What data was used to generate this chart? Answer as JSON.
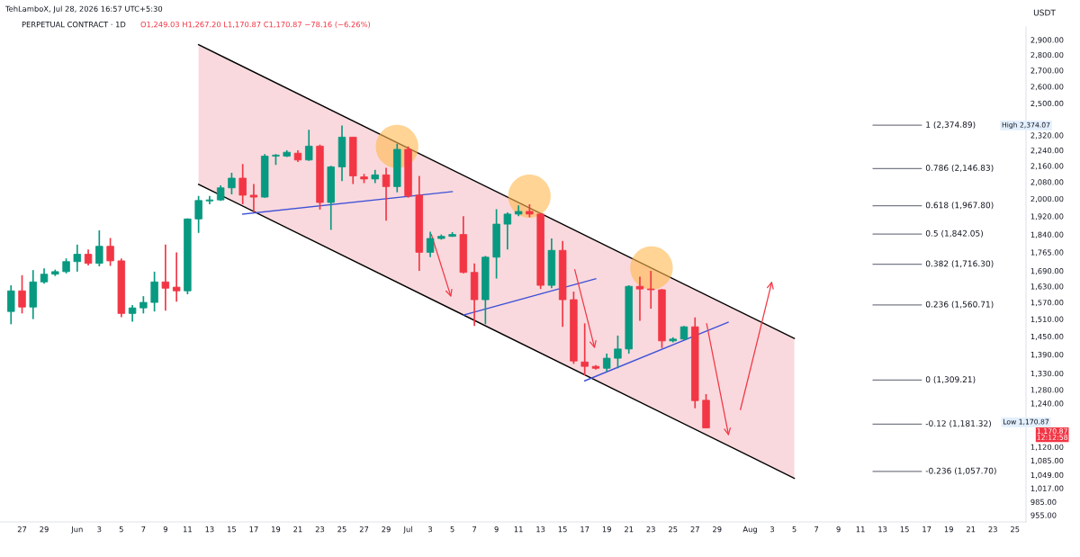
{
  "chart_data": {
    "type": "candlestick",
    "title": "PERPETUAL CONTRACT · 1D",
    "subtitle": "O1,249.03 H1,267.20 L1,170.87 C1,170.87 −78.16 (−6.26%)",
    "ylabel": "USDT",
    "annotations": [
      "TehLamboX, Jul 28, 2026 16:57 UTC+5:30",
      "High 2,374.07",
      "Low 1,170.87",
      "1,170.87\n12:12:58"
    ],
    "x": [
      "2026-05-26",
      "2026-05-27",
      "2026-05-28",
      "2026-05-29",
      "2026-05-30",
      "2026-05-31",
      "2026-06-01",
      "2026-06-02",
      "2026-06-03",
      "2026-06-04",
      "2026-06-05",
      "2026-06-06",
      "2026-06-07",
      "2026-06-08",
      "2026-06-09",
      "2026-06-10",
      "2026-06-11",
      "2026-06-12",
      "2026-06-13",
      "2026-06-14",
      "2026-06-15",
      "2026-06-16",
      "2026-06-17",
      "2026-06-18",
      "2026-06-19",
      "2026-06-20",
      "2026-06-21",
      "2026-06-22",
      "2026-06-23",
      "2026-06-24",
      "2026-06-25",
      "2026-06-26",
      "2026-06-27",
      "2026-06-28",
      "2026-06-29",
      "2026-06-30",
      "2026-07-01",
      "2026-07-02",
      "2026-07-03",
      "2026-07-04",
      "2026-07-05",
      "2026-07-06",
      "2026-07-07",
      "2026-07-08",
      "2026-07-09",
      "2026-07-10",
      "2026-07-11",
      "2026-07-12",
      "2026-07-13",
      "2026-07-14",
      "2026-07-15",
      "2026-07-16",
      "2026-07-17",
      "2026-07-18",
      "2026-07-19",
      "2026-07-20",
      "2026-07-21",
      "2026-07-22",
      "2026-07-23",
      "2026-07-24",
      "2026-07-25",
      "2026-07-26",
      "2026-07-27",
      "2026-07-28"
    ],
    "ohlc": [
      [
        1537,
        1634,
        1492,
        1613
      ],
      [
        1613,
        1673,
        1530,
        1553
      ],
      [
        1553,
        1693,
        1510,
        1647
      ],
      [
        1647,
        1700,
        1640,
        1677
      ],
      [
        1677,
        1695,
        1670,
        1687
      ],
      [
        1687,
        1740,
        1680,
        1727
      ],
      [
        1727,
        1797,
        1687,
        1757
      ],
      [
        1757,
        1777,
        1712,
        1720
      ],
      [
        1720,
        1858,
        1708,
        1790
      ],
      [
        1790,
        1825,
        1710,
        1730
      ],
      [
        1730,
        1740,
        1517,
        1530
      ],
      [
        1530,
        1560,
        1501,
        1550
      ],
      [
        1550,
        1593,
        1530,
        1570
      ],
      [
        1570,
        1687,
        1537,
        1647
      ],
      [
        1647,
        1797,
        1540,
        1623
      ],
      [
        1627,
        1765,
        1573,
        1613
      ],
      [
        1613,
        1910,
        1600,
        1908
      ],
      [
        1908,
        2013,
        1847,
        1992
      ],
      [
        1990,
        2013,
        1975,
        1995
      ],
      [
        1995,
        2064,
        1990,
        2052
      ],
      [
        2052,
        2125,
        2021,
        2099
      ],
      [
        2099,
        2170,
        1975,
        2017
      ],
      [
        2017,
        2070,
        1938,
        2008
      ],
      [
        2008,
        2220,
        2005,
        2210
      ],
      [
        2210,
        2220,
        2165,
        2215
      ],
      [
        2210,
        2240,
        2205,
        2230
      ],
      [
        2225,
        2240,
        2180,
        2190
      ],
      [
        2190,
        2350,
        2185,
        2262
      ],
      [
        2262,
        2270,
        1950,
        1983
      ],
      [
        1983,
        2160,
        1860,
        2155
      ],
      [
        2155,
        2374.07,
        2085,
        2310
      ],
      [
        2310,
        2310,
        2070,
        2110
      ],
      [
        2105,
        2120,
        2075,
        2095
      ],
      [
        2095,
        2140,
        2075,
        2115
      ],
      [
        2115,
        2150,
        1900,
        2058
      ],
      [
        2058,
        2275,
        2030,
        2245
      ],
      [
        2245,
        2260,
        2005,
        2013
      ],
      [
        2017,
        2110,
        1690,
        1765
      ],
      [
        1765,
        1852,
        1745,
        1823
      ],
      [
        1823,
        1840,
        1818,
        1832
      ],
      [
        1832,
        1850,
        1830,
        1840
      ],
      [
        1840,
        1920,
        1680,
        1684
      ],
      [
        1684,
        1720,
        1486,
        1580
      ],
      [
        1580,
        1750,
        1492,
        1745
      ],
      [
        1745,
        1952,
        1660,
        1885
      ],
      [
        1885,
        1938,
        1777,
        1930
      ],
      [
        1930,
        1970,
        1920,
        1942
      ],
      [
        1942,
        1975,
        1915,
        1930
      ],
      [
        1930,
        1935,
        1620,
        1634
      ],
      [
        1634,
        1823,
        1623,
        1773
      ],
      [
        1773,
        1813,
        1483,
        1580
      ],
      [
        1580,
        1610,
        1360,
        1369
      ],
      [
        1366,
        1495,
        1324,
        1352
      ],
      [
        1352,
        1356,
        1342,
        1346
      ],
      [
        1346,
        1393,
        1336,
        1378
      ],
      [
        1378,
        1453,
        1346,
        1408
      ],
      [
        1408,
        1634,
        1393,
        1630
      ],
      [
        1630,
        1667,
        1504,
        1620
      ],
      [
        1620,
        1690,
        1547,
        1617
      ],
      [
        1617,
        1620,
        1411,
        1435
      ],
      [
        1435,
        1447,
        1430,
        1441
      ],
      [
        1441,
        1486,
        1438,
        1483
      ],
      [
        1483,
        1516,
        1226,
        1248
      ],
      [
        1249.03,
        1267.2,
        1170.87,
        1170.87
      ]
    ],
    "colors": [
      "#089981",
      "#f23645",
      "#089981",
      "#089981",
      "#089981",
      "#089981",
      "#089981",
      "#f23645",
      "#089981",
      "#f23645",
      "#f23645",
      "#089981",
      "#089981",
      "#089981",
      "#f23645",
      "#f23645",
      "#089981",
      "#089981",
      "#089981",
      "#089981",
      "#089981",
      "#f23645",
      "#f23645",
      "#089981",
      "#089981",
      "#089981",
      "#f23645",
      "#089981",
      "#f23645",
      "#089981",
      "#089981",
      "#f23645",
      "#f23645",
      "#089981",
      "#f23645",
      "#089981",
      "#f23645",
      "#f23645",
      "#089981",
      "#089981",
      "#089981",
      "#f23645",
      "#f23645",
      "#089981",
      "#089981",
      "#089981",
      "#089981",
      "#f23645",
      "#f23645",
      "#089981",
      "#f23645",
      "#f23645",
      "#f23645",
      "#f23645",
      "#089981",
      "#089981",
      "#089981",
      "#f23645",
      "#f23645",
      "#f23645",
      "#089981",
      "#089981",
      "#f23645",
      "#f23645"
    ],
    "series": [
      {
        "type": "line",
        "color": "#000000",
        "x": [
          "2026-06-12",
          "2026-08-05"
        ],
        "values": [
          2867,
          1443
        ]
      },
      {
        "type": "line",
        "color": "#000000",
        "x": [
          "2026-06-12",
          "2026-08-05"
        ],
        "values": [
          2069,
          1041
        ]
      },
      {
        "type": "line",
        "color": "#3f51d8",
        "x": [
          "2026-06-16",
          "2026-07-05"
        ],
        "values": [
          1930,
          2034
        ]
      },
      {
        "type": "line",
        "color": "#3f51d8",
        "x": [
          "2026-07-06",
          "2026-07-18"
        ],
        "values": [
          1524,
          1659
        ]
      },
      {
        "type": "line",
        "color": "#3f51d8",
        "x": [
          "2026-07-17",
          "2026-07-30"
        ],
        "values": [
          1307,
          1499
        ]
      }
    ],
    "ref_lines": [
      {
        "axis": "y",
        "value": 2374.89,
        "label": "1 (2,374.89)",
        "color": "#787b86"
      },
      {
        "axis": "y",
        "value": 2146.83,
        "label": "0.786 (2,146.83)",
        "color": "#787b86"
      },
      {
        "axis": "y",
        "value": 1967.8,
        "label": "0.618 (1,967.80)",
        "color": "#787b86"
      },
      {
        "axis": "y",
        "value": 1842.05,
        "label": "0.5 (1,842.05)",
        "color": "#787b86"
      },
      {
        "axis": "y",
        "value": 1716.3,
        "label": "0.382 (1,716.30)",
        "color": "#787b86"
      },
      {
        "axis": "y",
        "value": 1560.71,
        "label": "0.236 (1,560.71)",
        "color": "#787b86"
      },
      {
        "axis": "y",
        "value": 1309.21,
        "label": "0 (1,309.21)",
        "color": "#787b86"
      },
      {
        "axis": "y",
        "value": 1181.32,
        "label": "-0.12 (1,181.32)",
        "color": "#787b86"
      },
      {
        "axis": "y",
        "value": 1057.7,
        "label": "-0.236 (1,057.70)",
        "color": "#787b86"
      }
    ],
    "log": "y",
    "grid": false,
    "xlim": [
      "2026-05-25",
      "2026-08-26"
    ],
    "xticks": [
      {
        "value": "2026-05-27",
        "label": "27"
      },
      {
        "value": "2026-05-29",
        "label": "29"
      },
      {
        "value": "2026-06-01",
        "label": "Jun"
      },
      {
        "value": "2026-06-03",
        "label": "3"
      },
      {
        "value": "2026-06-05",
        "label": "5"
      },
      {
        "value": "2026-06-07",
        "label": "7"
      },
      {
        "value": "2026-06-09",
        "label": "9"
      },
      {
        "value": "2026-06-11",
        "label": "11"
      },
      {
        "value": "2026-06-13",
        "label": "13"
      },
      {
        "value": "2026-06-15",
        "label": "15"
      },
      {
        "value": "2026-06-17",
        "label": "17"
      },
      {
        "value": "2026-06-19",
        "label": "19"
      },
      {
        "value": "2026-06-21",
        "label": "21"
      },
      {
        "value": "2026-06-23",
        "label": "23"
      },
      {
        "value": "2026-06-25",
        "label": "25"
      },
      {
        "value": "2026-06-27",
        "label": "27"
      },
      {
        "value": "2026-06-29",
        "label": "29"
      },
      {
        "value": "2026-07-01",
        "label": "Jul"
      },
      {
        "value": "2026-07-03",
        "label": "3"
      },
      {
        "value": "2026-07-05",
        "label": "5"
      },
      {
        "value": "2026-07-07",
        "label": "7"
      },
      {
        "value": "2026-07-09",
        "label": "9"
      },
      {
        "value": "2026-07-11",
        "label": "11"
      },
      {
        "value": "2026-07-13",
        "label": "13"
      },
      {
        "value": "2026-07-15",
        "label": "15"
      },
      {
        "value": "2026-07-17",
        "label": "17"
      },
      {
        "value": "2026-07-19",
        "label": "19"
      },
      {
        "value": "2026-07-21",
        "label": "21"
      },
      {
        "value": "2026-07-23",
        "label": "23"
      },
      {
        "value": "2026-07-25",
        "label": "25"
      },
      {
        "value": "2026-07-27",
        "label": "27"
      },
      {
        "value": "2026-07-29",
        "label": "29"
      },
      {
        "value": "2026-08-01",
        "label": "Aug"
      },
      {
        "value": "2026-08-03",
        "label": "3"
      },
      {
        "value": "2026-08-05",
        "label": "5"
      },
      {
        "value": "2026-08-07",
        "label": "7"
      },
      {
        "value": "2026-08-09",
        "label": "9"
      },
      {
        "value": "2026-08-11",
        "label": "11"
      },
      {
        "value": "2026-08-13",
        "label": "13"
      },
      {
        "value": "2026-08-15",
        "label": "15"
      },
      {
        "value": "2026-08-17",
        "label": "17"
      },
      {
        "value": "2026-08-19",
        "label": "19"
      },
      {
        "value": "2026-08-21",
        "label": "21"
      },
      {
        "value": "2026-08-23",
        "label": "23"
      },
      {
        "value": "2026-08-25",
        "label": "25"
      }
    ],
    "ylim": [
      940,
      2990
    ],
    "yticks": [
      {
        "value": 955,
        "label": "955.00"
      },
      {
        "value": 985,
        "label": "985.00"
      },
      {
        "value": 1017,
        "label": "1,017.00"
      },
      {
        "value": 1049,
        "label": "1,049.00"
      },
      {
        "value": 1085,
        "label": "1,085.00"
      },
      {
        "value": 1120,
        "label": "1,120.00"
      },
      {
        "value": 1240,
        "label": "1,240.00"
      },
      {
        "value": 1280,
        "label": "1,280.00"
      },
      {
        "value": 1330,
        "label": "1,330.00"
      },
      {
        "value": 1390,
        "label": "1,390.00"
      },
      {
        "value": 1450,
        "label": "1,450.00"
      },
      {
        "value": 1510,
        "label": "1,510.00"
      },
      {
        "value": 1570,
        "label": "1,570.00"
      },
      {
        "value": 1630,
        "label": "1,630.00"
      },
      {
        "value": 1690,
        "label": "1,690.00"
      },
      {
        "value": 1765,
        "label": "1,765.00"
      },
      {
        "value": 1840,
        "label": "1,840.00"
      },
      {
        "value": 1920,
        "label": "1,920.00"
      },
      {
        "value": 2000,
        "label": "2,000.00"
      },
      {
        "value": 2080,
        "label": "2,080.00"
      },
      {
        "value": 2160,
        "label": "2,160.00"
      },
      {
        "value": 2240,
        "label": "2,240.00"
      },
      {
        "value": 2320,
        "label": "2,320.00"
      },
      {
        "value": 2500,
        "label": "2,500.00"
      },
      {
        "value": 2600,
        "label": "2,600.00"
      },
      {
        "value": 2700,
        "label": "2,700.00"
      },
      {
        "value": 2800,
        "label": "2,800.00"
      },
      {
        "value": 2900,
        "label": "2,900.00"
      }
    ]
  }
}
